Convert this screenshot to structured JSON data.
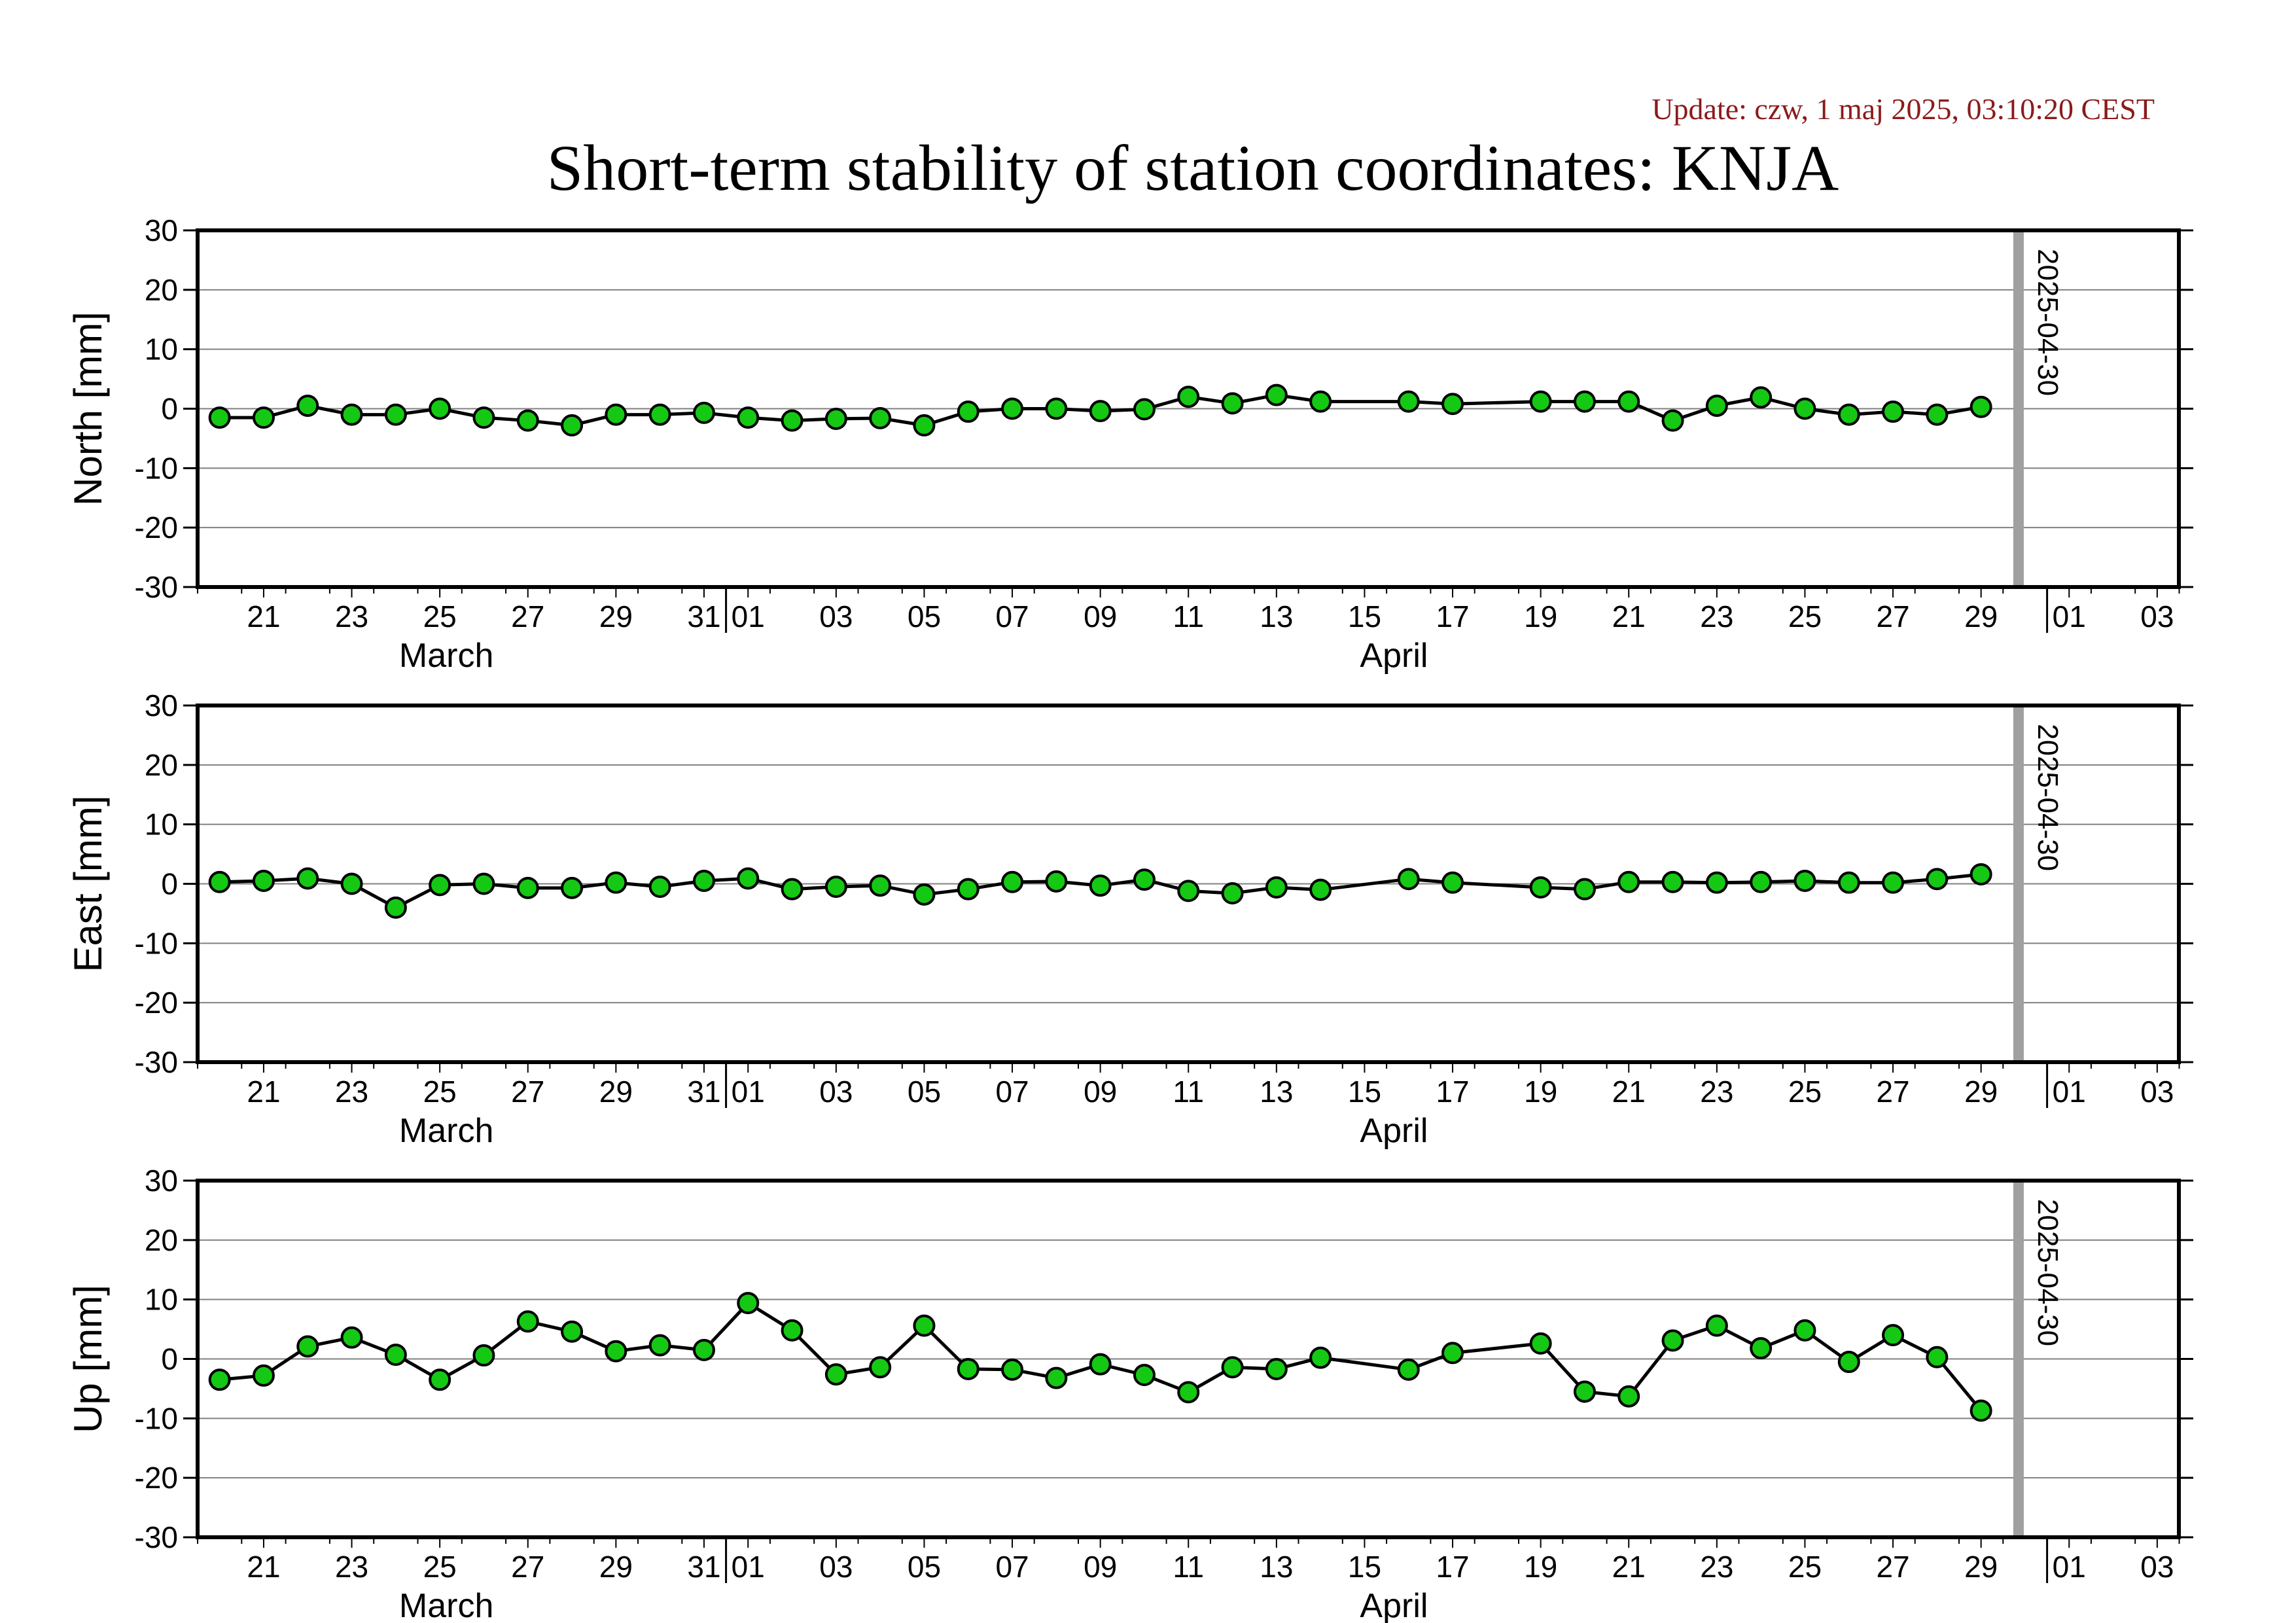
{
  "update_text": "Update: czw, 1 maj 2025, 03:10:20 CEST",
  "title": "Short-term stability of station coordinates: KNJA",
  "colors": {
    "update_text": "#8b1a1a",
    "marker_fill": "#14c814",
    "marker_stroke": "#000000",
    "line": "#000000",
    "gridline": "#808080",
    "current_date_bar": "#a0a0a0"
  },
  "chart_data": [
    {
      "type": "line",
      "ylabel": "North [mm]",
      "ylim": [
        -30,
        30
      ],
      "yticks": [
        30,
        20,
        10,
        0,
        -10,
        -20,
        -30
      ],
      "grid": true,
      "marker": "circle",
      "current_date_label": "2025-04-30",
      "x_tick_labels": [
        "21",
        "23",
        "25",
        "27",
        "29",
        "31",
        "01",
        "03",
        "05",
        "07",
        "09",
        "11",
        "13",
        "15",
        "17",
        "19",
        "21",
        "23",
        "25",
        "27",
        "29",
        "01",
        "03"
      ],
      "month_labels": [
        "March",
        "April"
      ],
      "series": [
        {
          "x": [
            "2025-03-20",
            "2025-03-21",
            "2025-03-22",
            "2025-03-23",
            "2025-03-24",
            "2025-03-25",
            "2025-03-26",
            "2025-03-27",
            "2025-03-28",
            "2025-03-29",
            "2025-03-30",
            "2025-03-31",
            "2025-04-01",
            "2025-04-02",
            "2025-04-03",
            "2025-04-04",
            "2025-04-05",
            "2025-04-06",
            "2025-04-07",
            "2025-04-08",
            "2025-04-09",
            "2025-04-10",
            "2025-04-11",
            "2025-04-12",
            "2025-04-13",
            "2025-04-14",
            "2025-04-16",
            "2025-04-17",
            "2025-04-19",
            "2025-04-20",
            "2025-04-21",
            "2025-04-22",
            "2025-04-23",
            "2025-04-24",
            "2025-04-25",
            "2025-04-26",
            "2025-04-27",
            "2025-04-28",
            "2025-04-29"
          ],
          "values": [
            -1.5,
            -1.5,
            0.5,
            -1,
            -1,
            0,
            -1.5,
            -2,
            -2.8,
            -1,
            -1,
            -0.7,
            -1.5,
            -2,
            -1.7,
            -1.6,
            -2.8,
            -0.5,
            0,
            0,
            -0.4,
            -0.1,
            2,
            0.9,
            2.3,
            1.2,
            1.2,
            0.8,
            1.2,
            1.2,
            1.2,
            -2,
            0.5,
            1.9,
            0,
            -1,
            -0.5,
            -1,
            0.3
          ]
        }
      ]
    },
    {
      "type": "line",
      "ylabel": "East [mm]",
      "ylim": [
        -30,
        30
      ],
      "yticks": [
        30,
        20,
        10,
        0,
        -10,
        -20,
        -30
      ],
      "grid": true,
      "marker": "circle",
      "current_date_label": "2025-04-30",
      "x_tick_labels": [
        "21",
        "23",
        "25",
        "27",
        "29",
        "31",
        "01",
        "03",
        "05",
        "07",
        "09",
        "11",
        "13",
        "15",
        "17",
        "19",
        "21",
        "23",
        "25",
        "27",
        "29",
        "01",
        "03"
      ],
      "month_labels": [
        "March",
        "April"
      ],
      "series": [
        {
          "x": [
            "2025-03-20",
            "2025-03-21",
            "2025-03-22",
            "2025-03-23",
            "2025-03-24",
            "2025-03-25",
            "2025-03-26",
            "2025-03-27",
            "2025-03-28",
            "2025-03-29",
            "2025-03-30",
            "2025-03-31",
            "2025-04-01",
            "2025-04-02",
            "2025-04-03",
            "2025-04-04",
            "2025-04-05",
            "2025-04-06",
            "2025-04-07",
            "2025-04-08",
            "2025-04-09",
            "2025-04-10",
            "2025-04-11",
            "2025-04-12",
            "2025-04-13",
            "2025-04-14",
            "2025-04-16",
            "2025-04-17",
            "2025-04-19",
            "2025-04-20",
            "2025-04-21",
            "2025-04-22",
            "2025-04-23",
            "2025-04-24",
            "2025-04-25",
            "2025-04-26",
            "2025-04-27",
            "2025-04-28",
            "2025-04-29"
          ],
          "values": [
            0.3,
            0.5,
            0.9,
            0,
            -4,
            -0.2,
            0,
            -0.7,
            -0.7,
            0.2,
            -0.5,
            0.5,
            0.9,
            -0.9,
            -0.5,
            -0.3,
            -1.8,
            -0.9,
            0.3,
            0.4,
            -0.3,
            0.7,
            -1.2,
            -1.6,
            -0.6,
            -1,
            0.8,
            0.2,
            -0.6,
            -0.9,
            0.3,
            0.3,
            0.2,
            0.3,
            0.5,
            0.2,
            0.2,
            0.8,
            1.6
          ]
        }
      ]
    },
    {
      "type": "line",
      "ylabel": "Up [mm]",
      "ylim": [
        -30,
        30
      ],
      "yticks": [
        30,
        20,
        10,
        0,
        -10,
        -20,
        -30
      ],
      "grid": true,
      "marker": "circle",
      "current_date_label": "2025-04-30",
      "x_tick_labels": [
        "21",
        "23",
        "25",
        "27",
        "29",
        "31",
        "01",
        "03",
        "05",
        "07",
        "09",
        "11",
        "13",
        "15",
        "17",
        "19",
        "21",
        "23",
        "25",
        "27",
        "29",
        "01",
        "03"
      ],
      "month_labels": [
        "March",
        "April"
      ],
      "series": [
        {
          "x": [
            "2025-03-20",
            "2025-03-21",
            "2025-03-22",
            "2025-03-23",
            "2025-03-24",
            "2025-03-25",
            "2025-03-26",
            "2025-03-27",
            "2025-03-28",
            "2025-03-29",
            "2025-03-30",
            "2025-03-31",
            "2025-04-01",
            "2025-04-02",
            "2025-04-03",
            "2025-04-04",
            "2025-04-05",
            "2025-04-06",
            "2025-04-07",
            "2025-04-08",
            "2025-04-09",
            "2025-04-10",
            "2025-04-11",
            "2025-04-12",
            "2025-04-13",
            "2025-04-14",
            "2025-04-16",
            "2025-04-17",
            "2025-04-19",
            "2025-04-20",
            "2025-04-21",
            "2025-04-22",
            "2025-04-23",
            "2025-04-24",
            "2025-04-25",
            "2025-04-26",
            "2025-04-27",
            "2025-04-28",
            "2025-04-29"
          ],
          "values": [
            -3.5,
            -2.8,
            2.1,
            3.6,
            0.7,
            -3.5,
            0.6,
            6.3,
            4.6,
            1.3,
            2.3,
            1.5,
            9.4,
            4.8,
            -2.6,
            -1.4,
            5.6,
            -1.7,
            -1.8,
            -3.2,
            -0.9,
            -2.7,
            -5.6,
            -1.4,
            -1.7,
            0.2,
            -1.8,
            1,
            2.6,
            -5.5,
            -6.3,
            3.1,
            5.6,
            1.8,
            4.8,
            -0.5,
            4,
            0.3,
            -8.7
          ]
        }
      ]
    }
  ]
}
